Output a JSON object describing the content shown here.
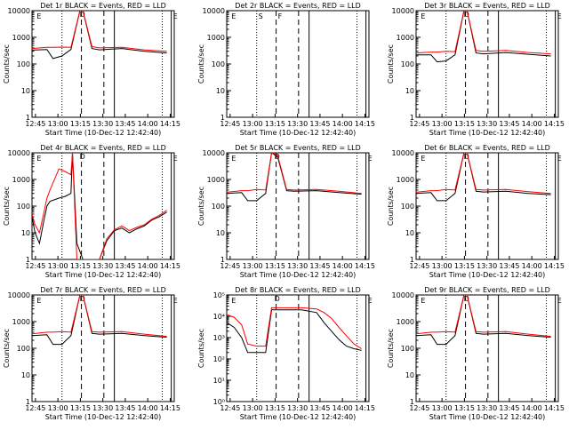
{
  "panel_titles": [
    "Det 1r BLACK = Events, RED = LLD",
    "Det 2r BLACK = Events, RED = LLD",
    "Det 3r BLACK = Events, RED = LLD",
    "Det 4r BLACK = Events, RED = LLD",
    "Det 5r BLACK = Events, RED = LLD",
    "Det 6r BLACK = Events, RED = LLD",
    "Det 7r BLACK = Events, RED = LLD",
    "Det 8r BLACK = Events, RED = LLD",
    "Det 9r BLACK = Events, RED = LLD"
  ],
  "x_ticks": [
    "12:45",
    "13:00",
    "13:15",
    "13:30",
    "13:45",
    "14:00",
    "14:15"
  ],
  "xlabel": "Start Time (10-Dec-12 12:42:40)",
  "ylabel": "Counts/sec",
  "y_ticks_plain": [
    "1",
    "10",
    "100",
    "1000",
    "10000"
  ],
  "y_ticks_exp": [
    "10⁰",
    "10¹",
    "10²",
    "10³",
    "10⁴",
    "10⁵"
  ],
  "markers": [
    "E",
    "S",
    "F",
    "D",
    "E"
  ],
  "colors": {
    "events": "#000000",
    "lld": "#ff0000"
  },
  "chart_data": [
    {
      "type": "line",
      "det": "1r",
      "ylog": true,
      "ylim": [
        1,
        10000
      ],
      "x_minutes": [
        0,
        10,
        14,
        20,
        26,
        32,
        34,
        40,
        45,
        60,
        75,
        90
      ],
      "series": [
        {
          "name": "BLACK = Events",
          "values": [
            330,
            350,
            160,
            200,
            350,
            10000,
            10000,
            380,
            340,
            380,
            300,
            260
          ]
        },
        {
          "name": "RED = LLD",
          "values": [
            380,
            420,
            420,
            430,
            420,
            10000,
            10000,
            450,
            400,
            420,
            340,
            300
          ]
        }
      ]
    },
    {
      "type": "line",
      "det": "2r",
      "ylog": true,
      "ylim": [
        1,
        10000
      ],
      "empty": true,
      "series": []
    },
    {
      "type": "line",
      "det": "3r",
      "ylog": true,
      "ylim": [
        1,
        10000
      ],
      "x_minutes": [
        0,
        10,
        14,
        20,
        26,
        32,
        34,
        40,
        45,
        60,
        75,
        90
      ],
      "series": [
        {
          "name": "BLACK = Events",
          "values": [
            220,
            220,
            120,
            130,
            220,
            10000,
            10000,
            260,
            240,
            270,
            230,
            200
          ]
        },
        {
          "name": "RED = LLD",
          "values": [
            260,
            280,
            280,
            300,
            290,
            10000,
            10000,
            320,
            300,
            320,
            270,
            240
          ]
        }
      ]
    },
    {
      "type": "line",
      "det": "4r",
      "ylog": true,
      "ylim": [
        1,
        10000
      ],
      "x_minutes": [
        0,
        2,
        5,
        8,
        10,
        12,
        18,
        22,
        26,
        27,
        30,
        32,
        34,
        40,
        45,
        50,
        55,
        60,
        65,
        70,
        75,
        80,
        85,
        90
      ],
      "series": [
        {
          "name": "BLACK = Events",
          "values": [
            40,
            10,
            4,
            30,
            100,
            150,
            200,
            230,
            300,
            10000,
            4,
            2,
            1,
            1,
            1,
            5,
            12,
            15,
            10,
            14,
            18,
            30,
            40,
            60
          ]
        },
        {
          "name": "RED = LLD",
          "values": [
            50,
            20,
            10,
            60,
            200,
            400,
            2500,
            2000,
            1500,
            10000,
            1,
            1,
            1,
            1,
            1,
            6,
            13,
            18,
            12,
            16,
            20,
            32,
            45,
            70
          ]
        }
      ]
    },
    {
      "type": "line",
      "det": "5r",
      "ylog": true,
      "ylim": [
        1,
        10000
      ],
      "x_minutes": [
        0,
        10,
        14,
        20,
        26,
        30,
        34,
        40,
        45,
        60,
        75,
        90
      ],
      "series": [
        {
          "name": "BLACK = Events",
          "values": [
            300,
            320,
            160,
            160,
            300,
            10000,
            7000,
            380,
            360,
            380,
            320,
            280
          ]
        },
        {
          "name": "RED = LLD",
          "values": [
            330,
            380,
            380,
            420,
            400,
            10000,
            8000,
            420,
            400,
            420,
            360,
            300
          ]
        }
      ]
    },
    {
      "type": "line",
      "det": "6r",
      "ylog": true,
      "ylim": [
        1,
        10000
      ],
      "x_minutes": [
        0,
        10,
        14,
        20,
        26,
        32,
        34,
        40,
        45,
        60,
        75,
        90
      ],
      "series": [
        {
          "name": "BLACK = Events",
          "values": [
            300,
            320,
            160,
            160,
            300,
            10000,
            10000,
            360,
            340,
            360,
            300,
            270
          ]
        },
        {
          "name": "RED = LLD",
          "values": [
            330,
            380,
            380,
            420,
            400,
            10000,
            10000,
            420,
            400,
            420,
            350,
            300
          ]
        }
      ]
    },
    {
      "type": "line",
      "det": "7r",
      "ylog": true,
      "ylim": [
        1,
        10000
      ],
      "x_minutes": [
        0,
        10,
        14,
        20,
        26,
        32,
        34,
        40,
        45,
        60,
        75,
        90
      ],
      "series": [
        {
          "name": "BLACK = Events",
          "values": [
            300,
            320,
            140,
            140,
            300,
            10000,
            10000,
            360,
            340,
            360,
            300,
            260
          ]
        },
        {
          "name": "RED = LLD",
          "values": [
            350,
            400,
            400,
            420,
            400,
            10000,
            10000,
            420,
            400,
            420,
            340,
            280
          ]
        }
      ]
    },
    {
      "type": "line",
      "det": "8r",
      "ylog": true,
      "ylim": [
        1,
        100000
      ],
      "x_minutes": [
        0,
        5,
        10,
        14,
        20,
        26,
        30,
        40,
        50,
        60,
        65,
        70,
        75,
        80,
        85,
        90
      ],
      "series": [
        {
          "name": "BLACK = Events",
          "values": [
            5000,
            3000,
            1000,
            200,
            200,
            200,
            20000,
            20000,
            20000,
            15000,
            5000,
            2000,
            800,
            400,
            300,
            250
          ]
        },
        {
          "name": "RED = LLD",
          "values": [
            12000,
            9000,
            4000,
            500,
            400,
            400,
            25000,
            25000,
            25000,
            22000,
            15000,
            8000,
            3000,
            1200,
            500,
            300
          ]
        }
      ]
    },
    {
      "type": "line",
      "det": "9r",
      "ylog": true,
      "ylim": [
        1,
        10000
      ],
      "x_minutes": [
        0,
        10,
        14,
        20,
        26,
        32,
        34,
        40,
        45,
        60,
        75,
        90
      ],
      "series": [
        {
          "name": "BLACK = Events",
          "values": [
            300,
            320,
            140,
            140,
            300,
            10000,
            10000,
            360,
            340,
            360,
            300,
            260
          ]
        },
        {
          "name": "RED = LLD",
          "values": [
            350,
            400,
            400,
            420,
            400,
            10000,
            10000,
            420,
            400,
            420,
            340,
            280
          ]
        }
      ]
    }
  ]
}
